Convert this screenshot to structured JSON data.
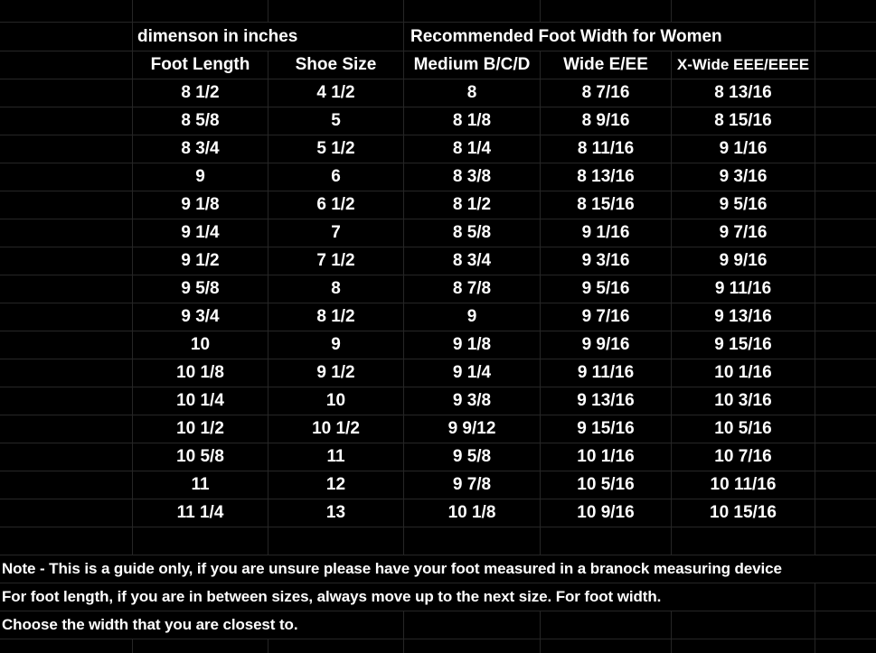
{
  "colors": {
    "background": "#000000",
    "text": "#ffffff",
    "gridline": "#262626"
  },
  "table": {
    "section_row": {
      "dimension_label": "dimenson in inches",
      "recommended_label": "Recommended Foot Width for Women"
    },
    "header_row": {
      "foot_length": "Foot Length",
      "shoe_size": "Shoe Size",
      "medium": "Medium B/C/D",
      "wide": "Wide E/EE",
      "x_wide": "X-Wide EEE/EEEE"
    },
    "rows": [
      [
        "8 1/2",
        "4 1/2",
        "8",
        "8 7/16",
        "8 13/16"
      ],
      [
        "8 5/8",
        "5",
        "8 1/8",
        "8 9/16",
        "8 15/16"
      ],
      [
        "8 3/4",
        "5 1/2",
        "8 1/4",
        "8 11/16",
        "9 1/16"
      ],
      [
        "9",
        "6",
        "8 3/8",
        "8 13/16",
        "9 3/16"
      ],
      [
        "9 1/8",
        "6 1/2",
        "8 1/2",
        "8 15/16",
        "9 5/16"
      ],
      [
        "9 1/4",
        "7",
        "8 5/8",
        "9 1/16",
        "9 7/16"
      ],
      [
        "9 1/2",
        "7 1/2",
        "8 3/4",
        "9 3/16",
        "9 9/16"
      ],
      [
        "9 5/8",
        "8",
        "8 7/8",
        "9 5/16",
        "9 11/16"
      ],
      [
        "9 3/4",
        "8 1/2",
        "9",
        "9 7/16",
        "9 13/16"
      ],
      [
        "10",
        "9",
        "9 1/8",
        "9 9/16",
        "9 15/16"
      ],
      [
        "10 1/8",
        "9 1/2",
        "9 1/4",
        "9 11/16",
        "10 1/16"
      ],
      [
        "10 1/4",
        "10",
        "9 3/8",
        "9 13/16",
        "10 3/16"
      ],
      [
        "10 1/2",
        "10 1/2",
        "9 9/12",
        "9 15/16",
        "10 5/16"
      ],
      [
        "10 5/8",
        "11",
        "9 5/8",
        "10 1/16",
        "10 7/16"
      ],
      [
        "11",
        "12",
        "9 7/8",
        "10 5/16",
        "10 11/16"
      ],
      [
        "11 1/4",
        "13",
        "10 1/8",
        "10 9/16",
        "10 15/16"
      ]
    ]
  },
  "notes": {
    "line1": "Note - This is a guide only, if you are unsure please have your foot measured in a branock measuring device",
    "line2": "For foot length, if you are in between sizes, always move up to the next size. For foot width.",
    "line3": "Choose the width that you are closest to."
  }
}
